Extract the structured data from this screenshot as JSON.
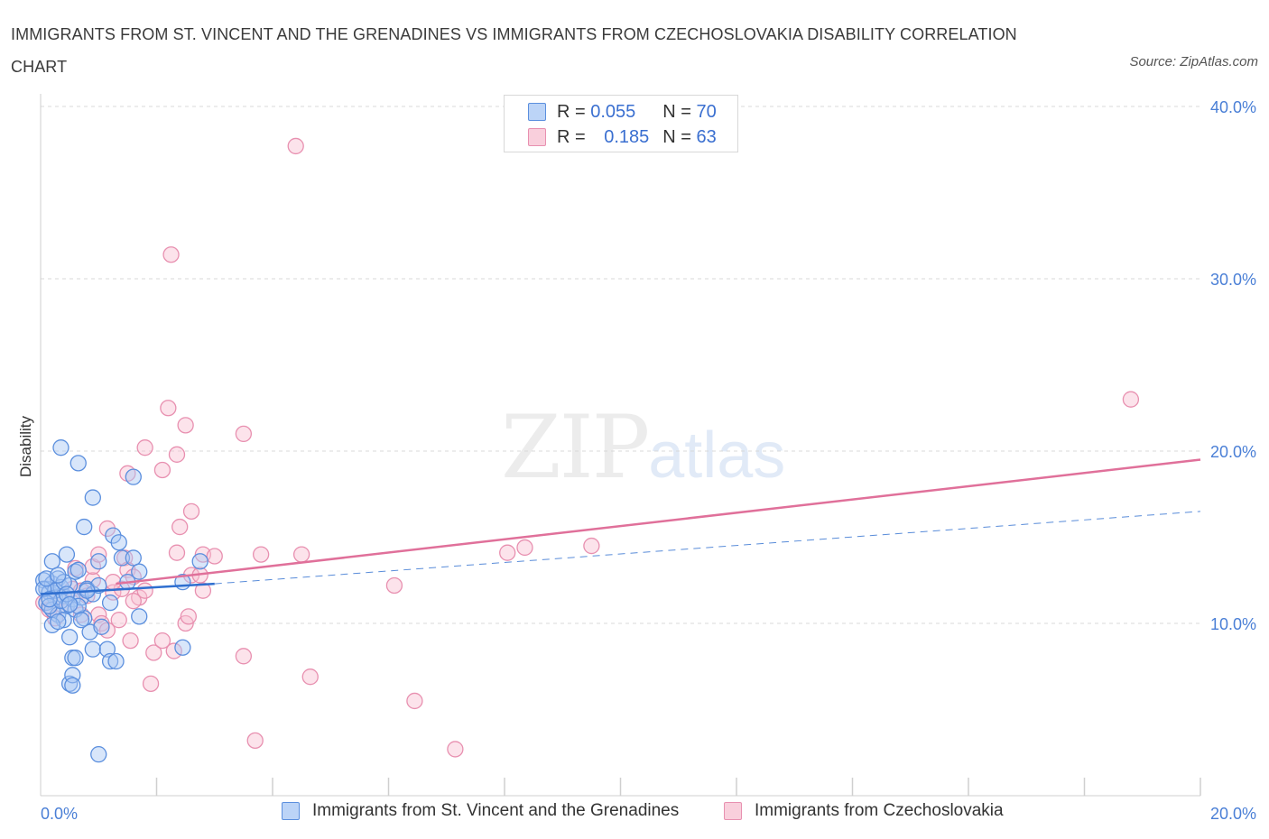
{
  "title": "IMMIGRANTS FROM ST. VINCENT AND THE GRENADINES VS IMMIGRANTS FROM CZECHOSLOVAKIA DISABILITY CORRELATION CHART",
  "source": "Source: ZipAtlas.com",
  "watermark": {
    "zip": "ZIP",
    "atlas": "atlas"
  },
  "legend": {
    "r_label": "R =",
    "n_label": "N =",
    "series1": {
      "r": "0.055",
      "n": "70"
    },
    "series2": {
      "r": "0.185",
      "n": "63"
    }
  },
  "colors": {
    "series1_fill": "#a9c8f5",
    "series1_stroke": "#5b8fde",
    "series1_line": "#2f6fd0",
    "series2_fill": "#f8c0d2",
    "series2_stroke": "#e890b0",
    "series2_line": "#e0709a",
    "tick": "#4a7fd6",
    "grid": "#d8d8d8"
  },
  "chart_data": {
    "type": "scatter",
    "xlabel": "",
    "ylabel": "Disability",
    "xlim": [
      0,
      20
    ],
    "ylim": [
      0,
      40
    ],
    "x_tick_labels": [
      "0.0%",
      "20.0%"
    ],
    "y_ticks": [
      10,
      20,
      30,
      40
    ],
    "y_tick_labels": [
      "10.0%",
      "20.0%",
      "30.0%",
      "40.0%"
    ],
    "grid": true,
    "series": [
      {
        "name": "Immigrants from St. Vincent and the Grenadines",
        "trend": {
          "x": [
            0,
            3.0
          ],
          "y": [
            11.7,
            12.3
          ],
          "extended_x": [
            3.0,
            20.0
          ],
          "extended_y": [
            12.3,
            16.5
          ]
        },
        "points": [
          [
            0.05,
            12.5
          ],
          [
            0.1,
            12.0
          ],
          [
            0.15,
            11.8
          ],
          [
            0.2,
            12.3
          ],
          [
            0.25,
            11.5
          ],
          [
            0.3,
            12.6
          ],
          [
            0.1,
            11.2
          ],
          [
            0.2,
            10.8
          ],
          [
            0.35,
            12.1
          ],
          [
            0.4,
            11.6
          ],
          [
            0.45,
            11.0
          ],
          [
            0.5,
            12.2
          ],
          [
            0.55,
            11.4
          ],
          [
            0.6,
            13.0
          ],
          [
            0.2,
            13.6
          ],
          [
            0.45,
            14.0
          ],
          [
            0.3,
            10.5
          ],
          [
            0.4,
            10.2
          ],
          [
            0.5,
            9.2
          ],
          [
            0.6,
            10.8
          ],
          [
            0.7,
            11.5
          ],
          [
            0.8,
            12.0
          ],
          [
            0.9,
            11.7
          ],
          [
            1.0,
            12.2
          ],
          [
            0.75,
            10.3
          ],
          [
            0.85,
            9.5
          ],
          [
            0.9,
            8.5
          ],
          [
            1.05,
            9.8
          ],
          [
            1.15,
            8.5
          ],
          [
            1.2,
            7.8
          ],
          [
            1.3,
            7.8
          ],
          [
            0.55,
            8.0
          ],
          [
            0.5,
            6.5
          ],
          [
            0.55,
            7.0
          ],
          [
            0.55,
            6.4
          ],
          [
            0.35,
            20.2
          ],
          [
            0.65,
            19.3
          ],
          [
            0.9,
            17.3
          ],
          [
            0.75,
            15.6
          ],
          [
            1.25,
            15.1
          ],
          [
            1.35,
            14.7
          ],
          [
            1.4,
            13.8
          ],
          [
            1.6,
            13.8
          ],
          [
            1.7,
            13.0
          ],
          [
            1.5,
            12.4
          ],
          [
            1.0,
            13.6
          ],
          [
            1.2,
            11.2
          ],
          [
            0.65,
            13.1
          ],
          [
            1.7,
            10.4
          ],
          [
            2.45,
            8.6
          ],
          [
            2.45,
            12.4
          ],
          [
            2.75,
            13.6
          ],
          [
            1.6,
            18.5
          ],
          [
            0.2,
            9.9
          ],
          [
            0.3,
            10.1
          ],
          [
            0.15,
            11.0
          ],
          [
            0.25,
            11.9
          ],
          [
            0.35,
            11.3
          ],
          [
            0.4,
            12.4
          ],
          [
            0.45,
            11.7
          ],
          [
            0.05,
            12.0
          ],
          [
            0.1,
            12.6
          ],
          [
            0.65,
            11.0
          ],
          [
            0.7,
            10.2
          ],
          [
            0.8,
            11.9
          ],
          [
            1.0,
            2.4
          ],
          [
            0.6,
            8.0
          ],
          [
            0.5,
            11.1
          ],
          [
            0.15,
            11.4
          ],
          [
            0.3,
            12.8
          ]
        ]
      },
      {
        "name": "Immigrants from Czechoslovakia",
        "trend": {
          "x": [
            1.3,
            20.0
          ],
          "y": [
            12.3,
            19.5
          ]
        },
        "points": [
          [
            0.05,
            11.2
          ],
          [
            0.15,
            10.8
          ],
          [
            0.25,
            10.3
          ],
          [
            0.35,
            11.5
          ],
          [
            0.45,
            11.0
          ],
          [
            0.55,
            12.0
          ],
          [
            0.6,
            13.2
          ],
          [
            0.7,
            11.9
          ],
          [
            0.8,
            11.6
          ],
          [
            0.9,
            12.5
          ],
          [
            1.0,
            10.5
          ],
          [
            1.05,
            10.0
          ],
          [
            1.15,
            9.6
          ],
          [
            1.25,
            11.8
          ],
          [
            1.35,
            10.2
          ],
          [
            1.4,
            12.0
          ],
          [
            1.45,
            13.8
          ],
          [
            1.5,
            13.1
          ],
          [
            1.6,
            12.7
          ],
          [
            1.7,
            11.5
          ],
          [
            1.8,
            11.9
          ],
          [
            1.55,
            9.0
          ],
          [
            1.95,
            8.3
          ],
          [
            2.1,
            9.0
          ],
          [
            2.3,
            8.4
          ],
          [
            2.5,
            10.0
          ],
          [
            2.6,
            12.8
          ],
          [
            2.75,
            12.8
          ],
          [
            2.8,
            11.9
          ],
          [
            2.55,
            10.4
          ],
          [
            1.9,
            6.5
          ],
          [
            2.1,
            18.9
          ],
          [
            2.2,
            22.5
          ],
          [
            2.35,
            19.8
          ],
          [
            1.8,
            20.2
          ],
          [
            2.5,
            21.5
          ],
          [
            1.5,
            18.7
          ],
          [
            2.6,
            16.5
          ],
          [
            2.4,
            15.6
          ],
          [
            2.35,
            14.1
          ],
          [
            2.8,
            14.0
          ],
          [
            3.0,
            13.9
          ],
          [
            3.5,
            21.0
          ],
          [
            3.8,
            14.0
          ],
          [
            3.5,
            8.1
          ],
          [
            4.4,
            37.7
          ],
          [
            2.25,
            31.4
          ],
          [
            4.5,
            14.0
          ],
          [
            4.65,
            6.9
          ],
          [
            3.7,
            3.2
          ],
          [
            6.1,
            12.2
          ],
          [
            6.45,
            5.5
          ],
          [
            7.15,
            2.7
          ],
          [
            8.05,
            14.1
          ],
          [
            8.35,
            14.4
          ],
          [
            9.5,
            14.5
          ],
          [
            18.8,
            23.0
          ],
          [
            1.15,
            15.5
          ],
          [
            0.9,
            13.3
          ],
          [
            1.0,
            14.0
          ],
          [
            0.7,
            10.5
          ],
          [
            1.25,
            12.4
          ],
          [
            1.6,
            11.3
          ]
        ]
      }
    ]
  }
}
